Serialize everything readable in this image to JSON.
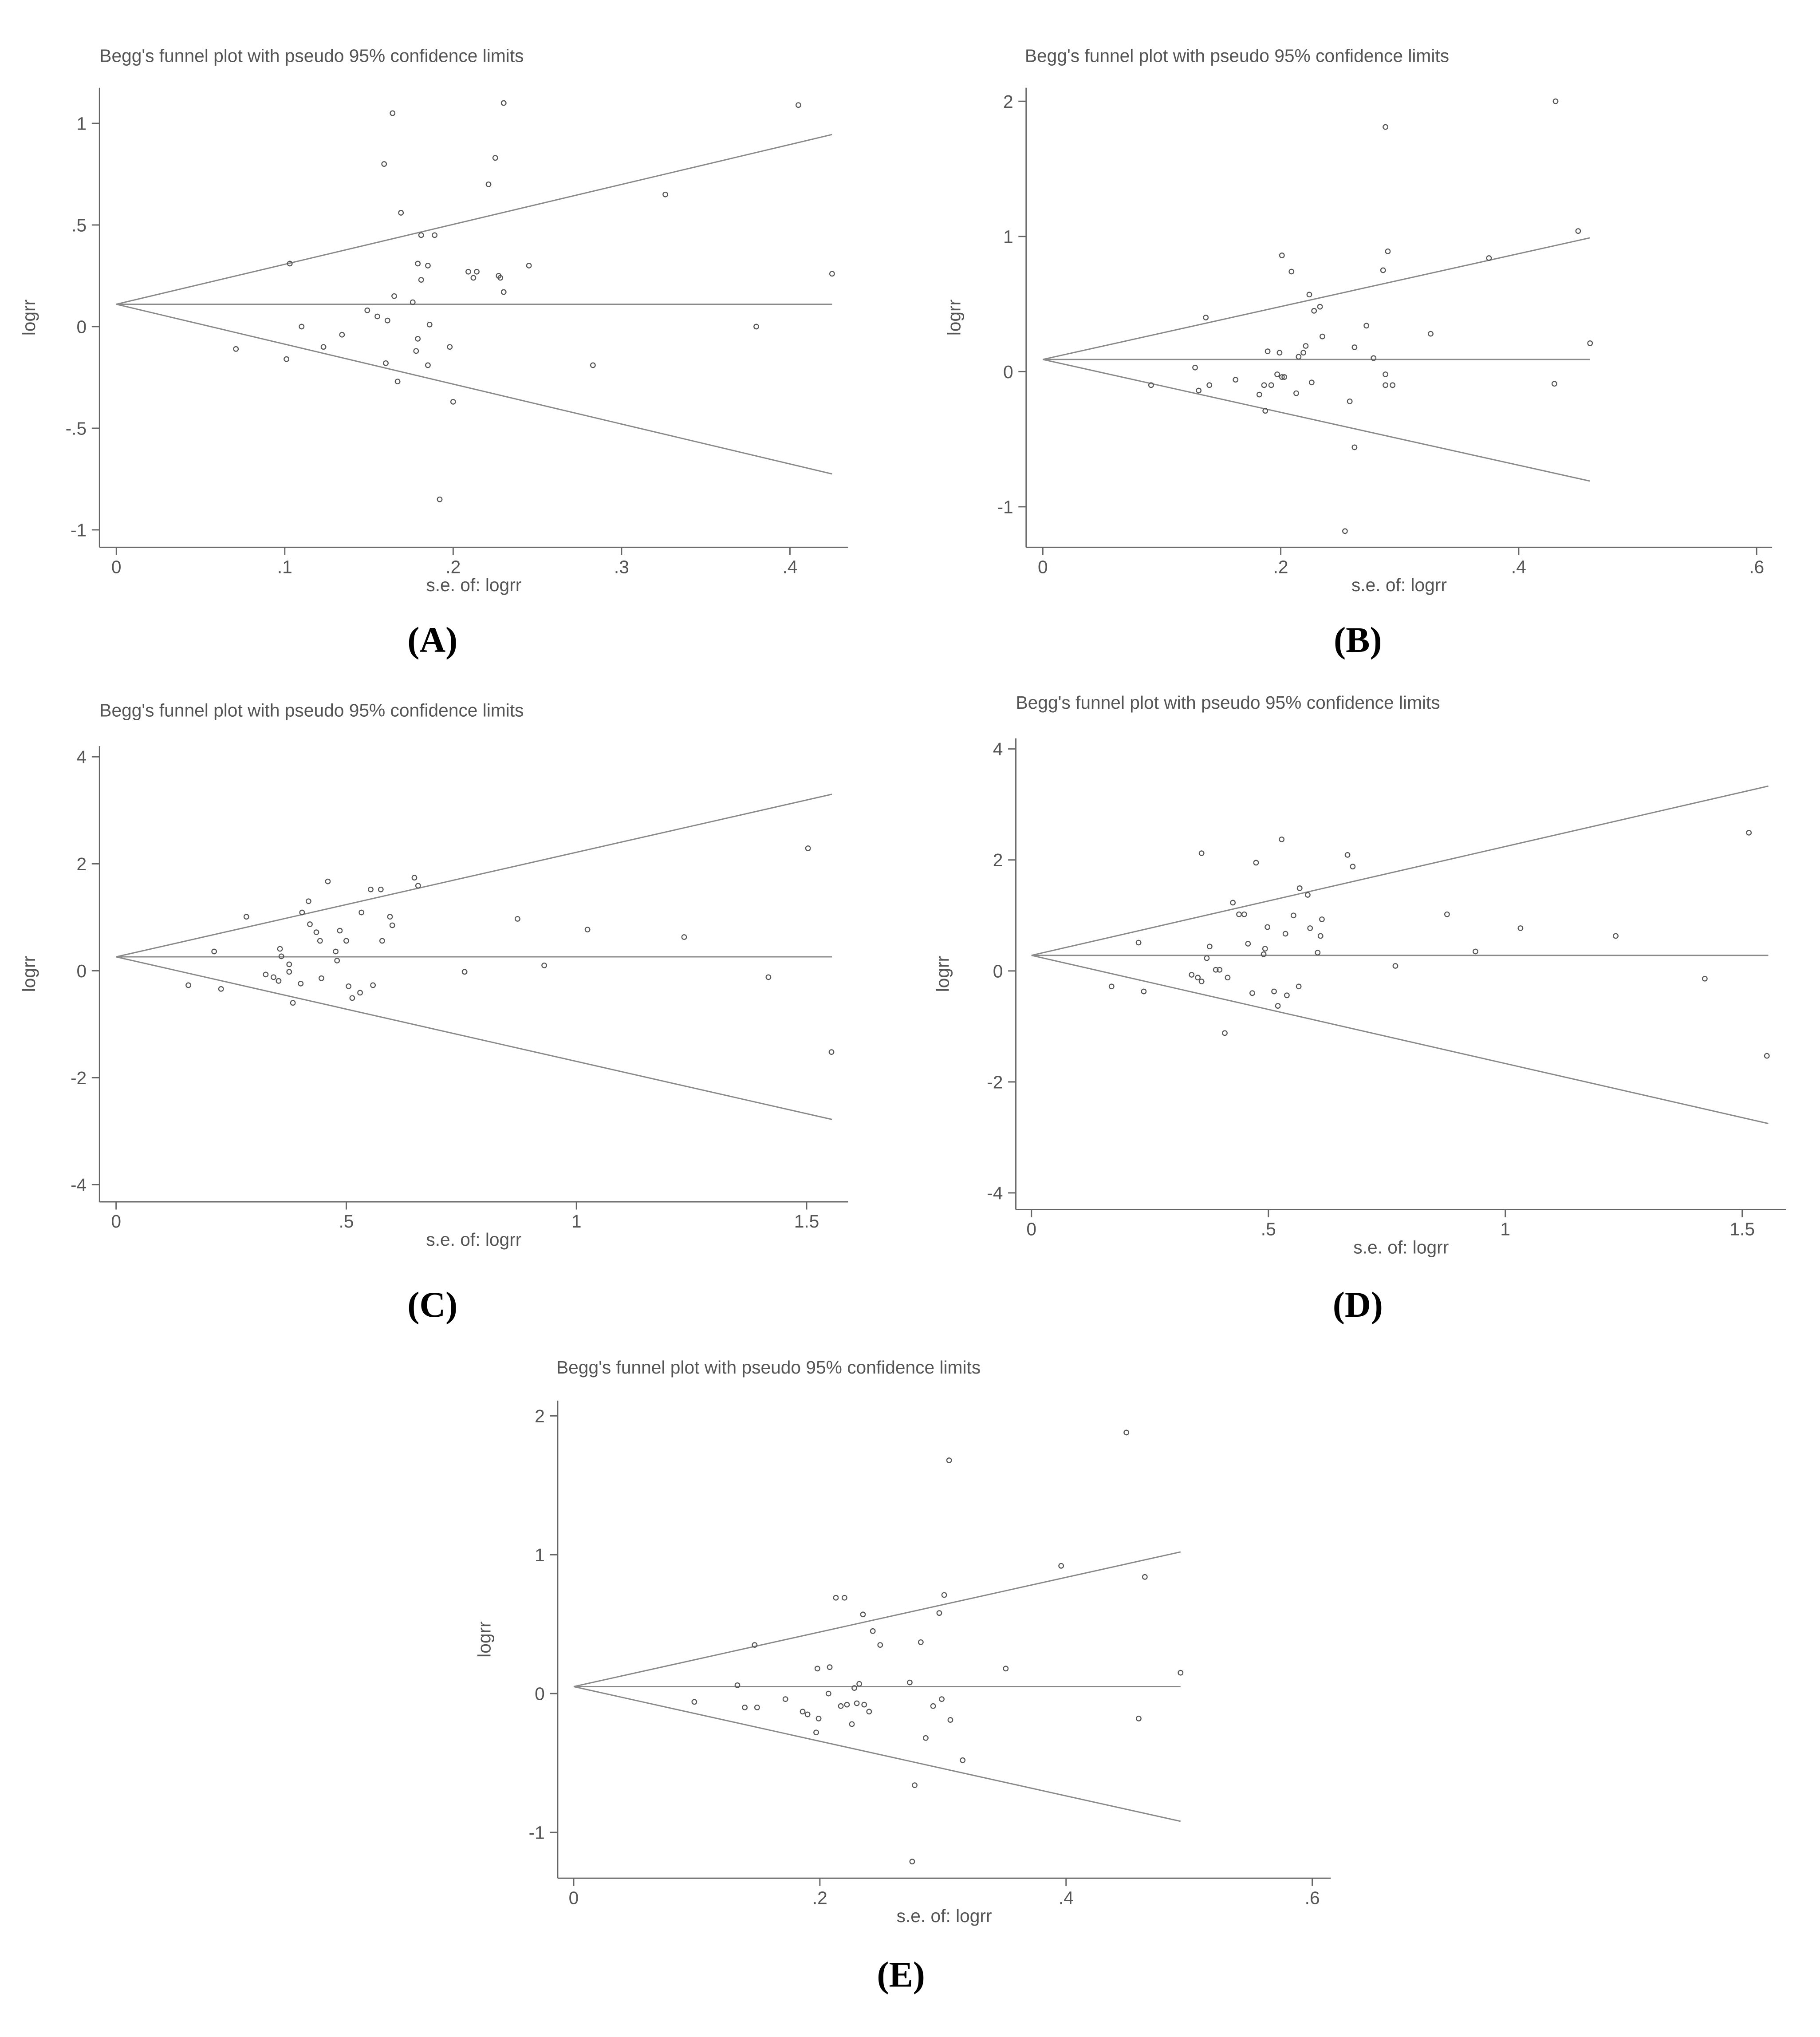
{
  "chart_data": [
    {
      "type": "scatter",
      "title": "Begg's funnel plot with pseudo 95% confidence limits",
      "panel": "(A)",
      "xlabel": "s.e. of: logrr",
      "ylabel": "logrr",
      "x": [
        0.071,
        0.101,
        0.103,
        0.11,
        0.123,
        0.134,
        0.149,
        0.155,
        0.159,
        0.16,
        0.161,
        0.164,
        0.165,
        0.167,
        0.169,
        0.176,
        0.178,
        0.179,
        0.179,
        0.181,
        0.181,
        0.185,
        0.185,
        0.186,
        0.189,
        0.192,
        0.198,
        0.2,
        0.209,
        0.212,
        0.214,
        0.221,
        0.225,
        0.227,
        0.228,
        0.23,
        0.23,
        0.245,
        0.283,
        0.326,
        0.38,
        0.405,
        0.425
      ],
      "y": [
        -0.11,
        -0.16,
        0.31,
        0,
        -0.1,
        -0.04,
        0.08,
        0.05,
        0.8,
        -0.18,
        0.03,
        1.05,
        0.15,
        -0.27,
        0.56,
        0.12,
        -0.12,
        -0.06,
        0.31,
        0.45,
        0.23,
        0.3,
        -0.19,
        0.01,
        0.45,
        -0.85,
        -0.1,
        -0.37,
        0.27,
        0.24,
        0.27,
        0.7,
        0.83,
        0.25,
        0.24,
        0.17,
        1.1,
        0.3,
        -0.19,
        0.65,
        0,
        1.09,
        0.26
      ],
      "lines": [
        {
          "x": [
            0,
            0.425
          ],
          "y": [
            0.11,
            0.11
          ]
        },
        {
          "x": [
            0,
            0.425
          ],
          "y": [
            0.11,
            0.945
          ]
        },
        {
          "x": [
            0,
            0.425
          ],
          "y": [
            0.11,
            -0.725
          ]
        }
      ],
      "xlim": [
        -0.01,
        0.4345
      ],
      "ylim": [
        -1.086,
        1.175
      ],
      "xticks": [
        0,
        {
          "value": 0.1,
          "label": ".1"
        },
        {
          "value": 0.2,
          "label": ".2"
        },
        {
          "value": 0.3,
          "label": ".3"
        },
        {
          "value": 0.4,
          "label": ".4"
        }
      ],
      "yticks": [
        -1,
        {
          "value": -0.5,
          "label": "-.5"
        },
        0,
        {
          "value": 0.5,
          "label": ".5"
        },
        1
      ]
    },
    {
      "type": "scatter",
      "title": "Begg's funnel plot with pseudo 95% confidence limits",
      "panel": "(B)",
      "xlabel": "s.e. of: logrr",
      "ylabel": "logrr",
      "x": [
        0.091,
        0.128,
        0.131,
        0.137,
        0.14,
        0.162,
        0.182,
        0.186,
        0.187,
        0.189,
        0.192,
        0.197,
        0.199,
        0.201,
        0.201,
        0.203,
        0.209,
        0.213,
        0.215,
        0.219,
        0.221,
        0.224,
        0.226,
        0.228,
        0.233,
        0.235,
        0.254,
        0.258,
        0.262,
        0.262,
        0.272,
        0.278,
        0.286,
        0.288,
        0.288,
        0.288,
        0.29,
        0.294,
        0.326,
        0.375,
        0.43,
        0.431,
        0.45,
        0.46
      ],
      "y": [
        -0.1,
        0.03,
        -0.14,
        0.4,
        -0.1,
        -0.06,
        -0.17,
        -0.1,
        -0.29,
        0.15,
        -0.1,
        -0.02,
        0.14,
        0.86,
        -0.04,
        -0.04,
        0.74,
        -0.16,
        0.11,
        0.14,
        0.19,
        0.57,
        -0.08,
        0.45,
        0.48,
        0.26,
        -1.18,
        -0.22,
        0.18,
        -0.56,
        0.34,
        0.1,
        0.75,
        -0.1,
        -0.02,
        1.81,
        0.89,
        -0.1,
        0.28,
        0.84,
        -0.09,
        2.0,
        1.04,
        0.21
      ],
      "lines": [
        {
          "x": [
            0,
            0.46
          ],
          "y": [
            0.09,
            0.09
          ]
        },
        {
          "x": [
            0,
            0.46
          ],
          "y": [
            0.09,
            0.99
          ]
        },
        {
          "x": [
            0,
            0.46
          ],
          "y": [
            0.09,
            -0.81
          ]
        }
      ],
      "xlim": [
        -0.014,
        0.613
      ],
      "ylim": [
        -1.3,
        2.1
      ],
      "xticks": [
        0,
        {
          "value": 0.2,
          "label": ".2"
        },
        {
          "value": 0.4,
          "label": ".4"
        },
        {
          "value": 0.6,
          "label": ".6"
        }
      ],
      "yticks": [
        -1,
        0,
        1,
        2
      ]
    },
    {
      "type": "scatter",
      "title": "Begg's funnel plot with pseudo 95% confidence limits",
      "panel": "(C)",
      "xlabel": "s.e. of: logrr",
      "ylabel": "logrr",
      "x": [
        0.157,
        0.213,
        0.228,
        0.283,
        0.325,
        0.342,
        0.353,
        0.356,
        0.359,
        0.376,
        0.376,
        0.384,
        0.401,
        0.404,
        0.418,
        0.421,
        0.435,
        0.443,
        0.446,
        0.46,
        0.477,
        0.48,
        0.486,
        0.5,
        0.505,
        0.513,
        0.53,
        0.533,
        0.553,
        0.558,
        0.575,
        0.578,
        0.595,
        0.6,
        0.648,
        0.656,
        0.757,
        0.872,
        0.93,
        1.024,
        1.234,
        1.417,
        1.503,
        1.554
      ],
      "y": [
        -0.27,
        0.36,
        -0.34,
        1.01,
        -0.07,
        -0.12,
        -0.19,
        0.41,
        0.27,
        -0.02,
        0.12,
        -0.6,
        -0.24,
        1.09,
        1.3,
        0.87,
        0.72,
        0.56,
        -0.14,
        1.67,
        0.36,
        0.19,
        0.75,
        0.56,
        -0.29,
        -0.51,
        -0.41,
        1.09,
        1.52,
        -0.27,
        1.52,
        0.56,
        1.01,
        0.85,
        1.74,
        1.59,
        -0.02,
        0.97,
        0.1,
        0.77,
        0.63,
        -0.12,
        2.29,
        -1.52
      ],
      "lines": [
        {
          "x": [
            0,
            1.555
          ],
          "y": [
            0.26,
            0.26
          ]
        },
        {
          "x": [
            0,
            1.555
          ],
          "y": [
            0.26,
            3.3
          ]
        },
        {
          "x": [
            0,
            1.555
          ],
          "y": [
            0.26,
            -2.78
          ]
        }
      ],
      "xlim": [
        -0.036,
        1.59
      ],
      "ylim": [
        -4.32,
        4.2
      ],
      "xticks": [
        0,
        {
          "value": 0.5,
          "label": ".5"
        },
        1,
        1.5
      ],
      "yticks": [
        -4,
        -2,
        0,
        2,
        4
      ]
    },
    {
      "type": "scatter",
      "title": "Begg's funnel plot with pseudo 95% confidence limits",
      "panel": "(D)",
      "xlabel": "s.e. of: logrr",
      "ylabel": "logrr",
      "x": [
        0.169,
        0.226,
        0.237,
        0.338,
        0.351,
        0.359,
        0.359,
        0.37,
        0.376,
        0.389,
        0.397,
        0.408,
        0.414,
        0.425,
        0.438,
        0.449,
        0.457,
        0.466,
        0.474,
        0.49,
        0.493,
        0.498,
        0.512,
        0.52,
        0.528,
        0.536,
        0.539,
        0.553,
        0.564,
        0.566,
        0.583,
        0.588,
        0.604,
        0.61,
        0.613,
        0.667,
        0.678,
        0.768,
        0.877,
        0.937,
        1.032,
        1.233,
        1.421,
        1.514,
        1.552
      ],
      "y": [
        -0.28,
        0.51,
        -0.37,
        -0.07,
        -0.12,
        2.12,
        -0.19,
        0.23,
        0.44,
        0.02,
        0.02,
        -1.12,
        -0.12,
        1.23,
        1.02,
        1.02,
        0.49,
        -0.4,
        1.95,
        0.3,
        0.4,
        0.79,
        -0.37,
        -0.63,
        2.37,
        0.67,
        -0.44,
        1.0,
        -0.28,
        1.49,
        1.37,
        0.77,
        0.33,
        0.63,
        0.93,
        2.09,
        1.88,
        0.09,
        1.02,
        0.35,
        0.77,
        0.63,
        -0.14,
        2.49,
        -1.53
      ],
      "lines": [
        {
          "x": [
            0,
            1.555
          ],
          "y": [
            0.28,
            0.28
          ]
        },
        {
          "x": [
            0,
            1.555
          ],
          "y": [
            0.28,
            3.33
          ]
        },
        {
          "x": [
            0,
            1.555
          ],
          "y": [
            0.28,
            -2.75
          ]
        }
      ],
      "xlim": [
        -0.033,
        1.593
      ],
      "ylim": [
        -4.3,
        4.19
      ],
      "xticks": [
        0,
        {
          "value": 0.5,
          "label": ".5"
        },
        1,
        1.5
      ],
      "yticks": [
        -4,
        -2,
        0,
        2,
        4
      ]
    },
    {
      "type": "scatter",
      "title": "Begg's funnel plot with pseudo 95% confidence limits",
      "panel": "(E)",
      "xlabel": "s.e. of: logrr",
      "ylabel": "logrr",
      "x": [
        0.098,
        0.133,
        0.139,
        0.147,
        0.149,
        0.172,
        0.186,
        0.19,
        0.197,
        0.198,
        0.199,
        0.207,
        0.208,
        0.213,
        0.217,
        0.22,
        0.222,
        0.226,
        0.228,
        0.23,
        0.232,
        0.235,
        0.236,
        0.24,
        0.243,
        0.249,
        0.273,
        0.277,
        0.275,
        0.282,
        0.286,
        0.292,
        0.297,
        0.299,
        0.301,
        0.305,
        0.306,
        0.316,
        0.351,
        0.396,
        0.449,
        0.459,
        0.464,
        0.493
      ],
      "y": [
        -0.06,
        0.06,
        -0.1,
        0.35,
        -0.1,
        -0.04,
        -0.13,
        -0.15,
        -0.28,
        0.18,
        -0.18,
        0,
        0.19,
        0.69,
        -0.09,
        0.69,
        -0.08,
        -0.22,
        0.04,
        -0.07,
        0.07,
        0.57,
        -0.08,
        -0.13,
        0.45,
        0.35,
        0.08,
        -0.66,
        -1.21,
        0.37,
        -0.32,
        -0.09,
        0.58,
        -0.04,
        0.71,
        1.68,
        -0.19,
        -0.48,
        0.18,
        0.92,
        1.88,
        -0.18,
        0.84,
        0.15
      ],
      "lines": [
        {
          "x": [
            0,
            0.493
          ],
          "y": [
            0.05,
            0.05
          ]
        },
        {
          "x": [
            0,
            0.493
          ],
          "y": [
            0.05,
            1.02
          ]
        },
        {
          "x": [
            0,
            0.493
          ],
          "y": [
            0.05,
            -0.92
          ]
        }
      ],
      "xlim": [
        -0.013,
        0.615
      ],
      "ylim": [
        -1.33,
        2.11
      ],
      "xticks": [
        0,
        {
          "value": 0.2,
          "label": ".2"
        },
        {
          "value": 0.4,
          "label": ".4"
        },
        {
          "value": 0.6,
          "label": ".6"
        }
      ],
      "yticks": [
        -1,
        0,
        1,
        2
      ]
    }
  ]
}
